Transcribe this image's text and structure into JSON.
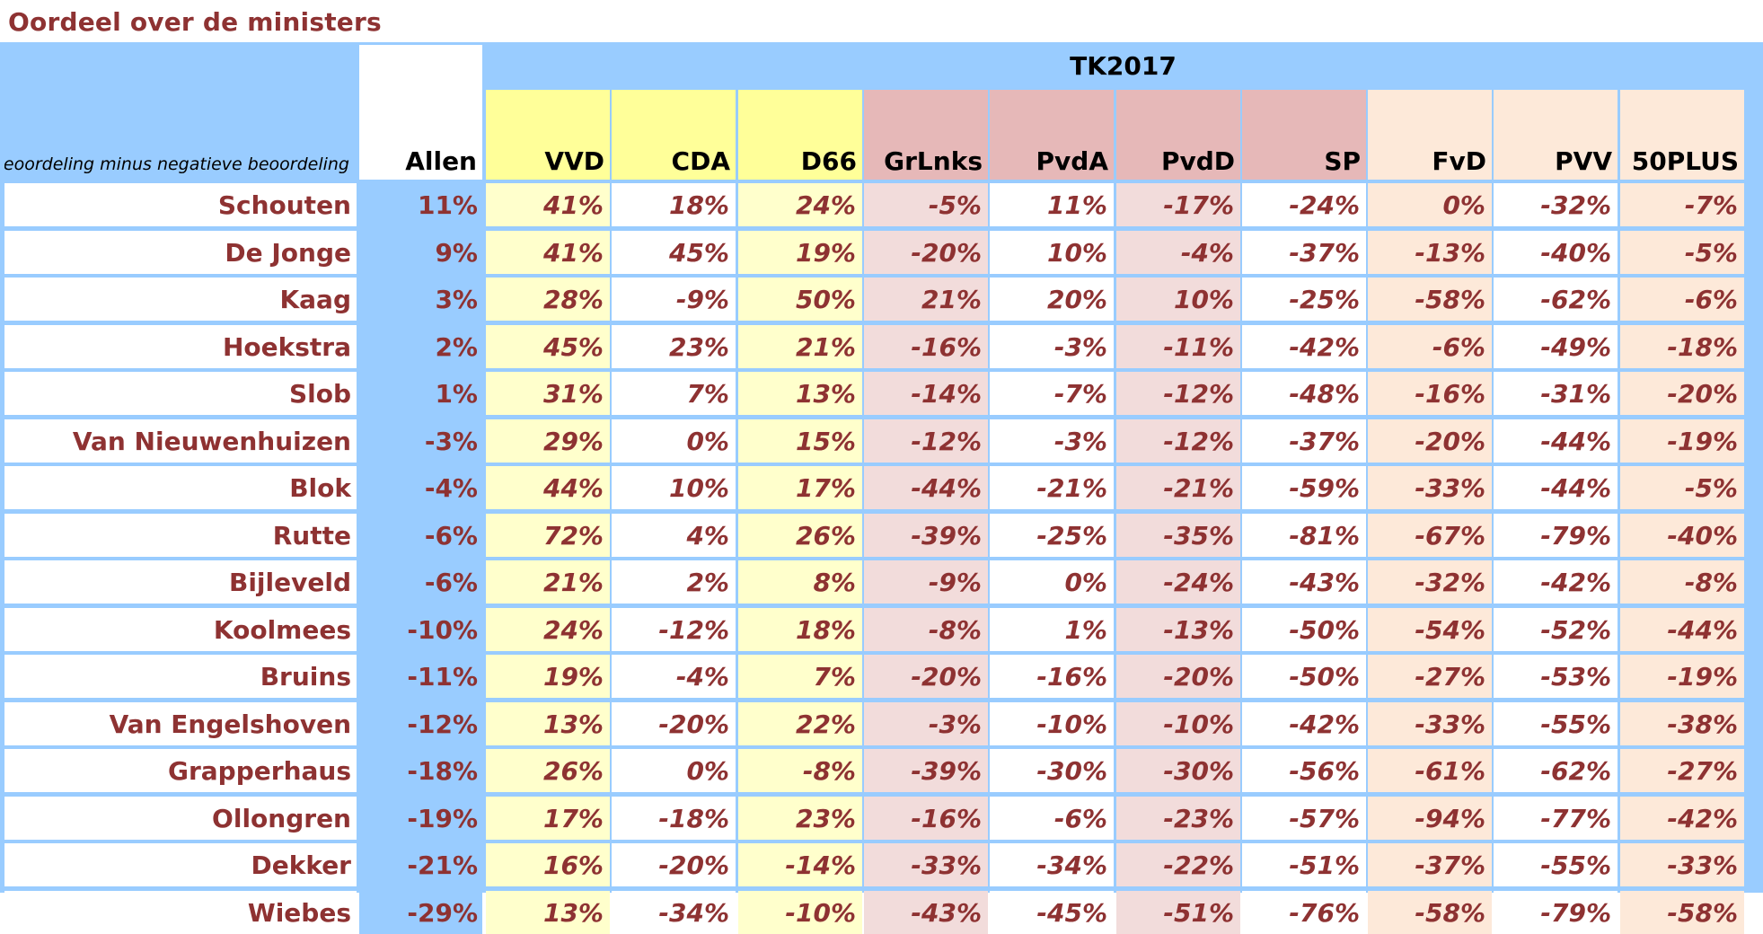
{
  "title": "Oordeel over de ministers",
  "description": "Positieve beoordeling minus negatieve beoordeling",
  "group_label": "TK2017",
  "all_label": "Allen",
  "colors": {
    "title_text": "#8e3232",
    "background_blue": "#99ccff",
    "coalition_header": "#ffff99",
    "coalition_alt": "#ffffcc",
    "left_header": "#e6b8b8",
    "left_alt": "#f2dcdb",
    "right_alt": "#fde9d9"
  },
  "parties": [
    {
      "name": "VVD",
      "group": "coalition"
    },
    {
      "name": "CDA",
      "group": "coalition"
    },
    {
      "name": "D66",
      "group": "coalition"
    },
    {
      "name": "GrLnks",
      "group": "left"
    },
    {
      "name": "PvdA",
      "group": "left"
    },
    {
      "name": "PvdD",
      "group": "left"
    },
    {
      "name": "SP",
      "group": "left"
    },
    {
      "name": "FvD",
      "group": "right"
    },
    {
      "name": "PVV",
      "group": "right"
    },
    {
      "name": "50PLUS",
      "group": "right"
    }
  ],
  "rows": [
    {
      "name": "Schouten",
      "allen": "11%",
      "values": [
        "41%",
        "18%",
        "24%",
        "-5%",
        "11%",
        "-17%",
        "-24%",
        "0%",
        "-32%",
        "-7%"
      ]
    },
    {
      "name": "De Jonge",
      "allen": "9%",
      "values": [
        "41%",
        "45%",
        "19%",
        "-20%",
        "10%",
        "-4%",
        "-37%",
        "-13%",
        "-40%",
        "-5%"
      ]
    },
    {
      "name": "Kaag",
      "allen": "3%",
      "values": [
        "28%",
        "-9%",
        "50%",
        "21%",
        "20%",
        "10%",
        "-25%",
        "-58%",
        "-62%",
        "-6%"
      ]
    },
    {
      "name": "Hoekstra",
      "allen": "2%",
      "values": [
        "45%",
        "23%",
        "21%",
        "-16%",
        "-3%",
        "-11%",
        "-42%",
        "-6%",
        "-49%",
        "-18%"
      ]
    },
    {
      "name": "Slob",
      "allen": "1%",
      "values": [
        "31%",
        "7%",
        "13%",
        "-14%",
        "-7%",
        "-12%",
        "-48%",
        "-16%",
        "-31%",
        "-20%"
      ]
    },
    {
      "name": "Van Nieuwenhuizen",
      "allen": "-3%",
      "values": [
        "29%",
        "0%",
        "15%",
        "-12%",
        "-3%",
        "-12%",
        "-37%",
        "-20%",
        "-44%",
        "-19%"
      ]
    },
    {
      "name": "Blok",
      "allen": "-4%",
      "values": [
        "44%",
        "10%",
        "17%",
        "-44%",
        "-21%",
        "-21%",
        "-59%",
        "-33%",
        "-44%",
        "-5%"
      ]
    },
    {
      "name": "Rutte",
      "allen": "-6%",
      "values": [
        "72%",
        "4%",
        "26%",
        "-39%",
        "-25%",
        "-35%",
        "-81%",
        "-67%",
        "-79%",
        "-40%"
      ]
    },
    {
      "name": "Bijleveld",
      "allen": "-6%",
      "values": [
        "21%",
        "2%",
        "8%",
        "-9%",
        "0%",
        "-24%",
        "-43%",
        "-32%",
        "-42%",
        "-8%"
      ]
    },
    {
      "name": "Koolmees",
      "allen": "-10%",
      "values": [
        "24%",
        "-12%",
        "18%",
        "-8%",
        "1%",
        "-13%",
        "-50%",
        "-54%",
        "-52%",
        "-44%"
      ]
    },
    {
      "name": "Bruins",
      "allen": "-11%",
      "values": [
        "19%",
        "-4%",
        "7%",
        "-20%",
        "-16%",
        "-20%",
        "-50%",
        "-27%",
        "-53%",
        "-19%"
      ]
    },
    {
      "name": "Van Engelshoven",
      "allen": "-12%",
      "values": [
        "13%",
        "-20%",
        "22%",
        "-3%",
        "-10%",
        "-10%",
        "-42%",
        "-33%",
        "-55%",
        "-38%"
      ]
    },
    {
      "name": "Grapperhaus",
      "allen": "-18%",
      "values": [
        "26%",
        "0%",
        "-8%",
        "-39%",
        "-30%",
        "-30%",
        "-56%",
        "-61%",
        "-62%",
        "-27%"
      ]
    },
    {
      "name": "Ollongren",
      "allen": "-19%",
      "values": [
        "17%",
        "-18%",
        "23%",
        "-16%",
        "-6%",
        "-23%",
        "-57%",
        "-94%",
        "-77%",
        "-42%"
      ]
    },
    {
      "name": "Dekker",
      "allen": "-21%",
      "values": [
        "16%",
        "-20%",
        "-14%",
        "-33%",
        "-34%",
        "-22%",
        "-51%",
        "-37%",
        "-55%",
        "-33%"
      ]
    },
    {
      "name": "Wiebes",
      "allen": "-29%",
      "values": [
        "13%",
        "-34%",
        "-10%",
        "-43%",
        "-45%",
        "-51%",
        "-76%",
        "-58%",
        "-79%",
        "-58%"
      ]
    }
  ]
}
